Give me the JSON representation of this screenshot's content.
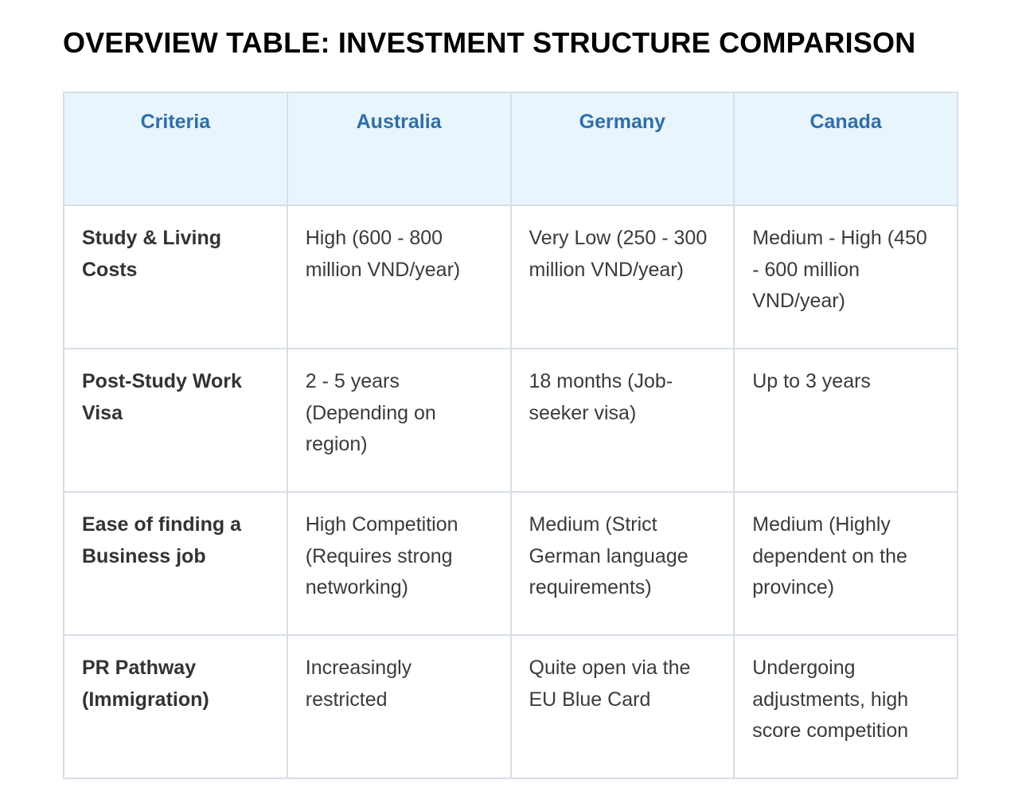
{
  "title": "OVERVIEW TABLE: INVESTMENT STRUCTURE COMPARISON",
  "table": {
    "headers": [
      "Criteria",
      "Australia",
      "Germany",
      "Canada"
    ],
    "rows": [
      {
        "criteria": "Study & Living Costs",
        "australia": "High (600 - 800 million VND/year)",
        "germany": "Very Low (250 - 300 million VND/year)",
        "canada": "Medium - High (450 - 600 million VND/year)"
      },
      {
        "criteria": "Post-Study Work Visa",
        "australia": "2 - 5 years (Depending on region)",
        "germany": "18 months (Job-seeker visa)",
        "canada": "Up to 3 years"
      },
      {
        "criteria": "Ease of finding a Business job",
        "australia": "High Competition (Requires strong networking)",
        "germany": "Medium (Strict German language requirements)",
        "canada": "Medium (Highly dependent on the province)"
      },
      {
        "criteria": "PR Pathway (Immigration)",
        "australia": "Increasingly restricted",
        "germany": "Quite open via the EU Blue Card",
        "canada": "Undergoing adjustments, high score competition"
      }
    ]
  },
  "colors": {
    "header_background": "#e8f5fd",
    "header_text": "#2f6ea8",
    "border": "#d7dee6",
    "title_text": "#000000",
    "body_text": "#3b3b3b"
  }
}
